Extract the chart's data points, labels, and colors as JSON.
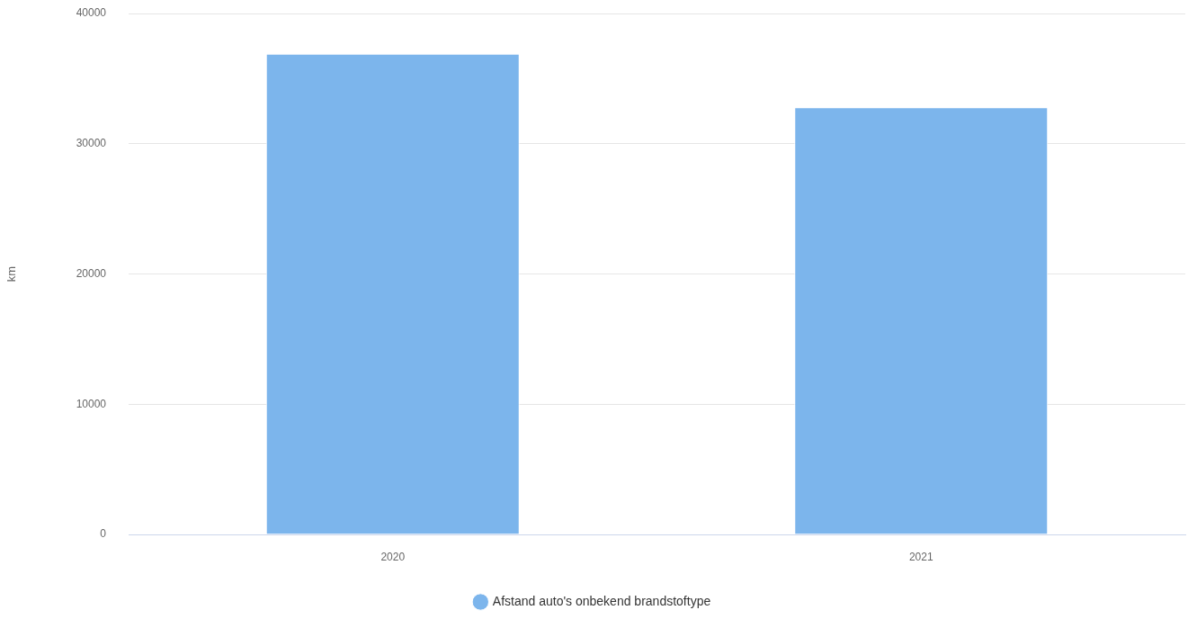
{
  "chart_data": {
    "type": "bar",
    "categories": [
      "2020",
      "2021"
    ],
    "series": [
      {
        "name": "Afstand auto's onbekend brandstoftype",
        "color": "#7cb5ec",
        "values": [
          36900,
          32800
        ]
      }
    ],
    "ylabel": "km",
    "ylim": [
      0,
      40000
    ],
    "yticks": [
      0,
      10000,
      20000,
      30000,
      40000
    ],
    "grid": "y",
    "legend": "bottom"
  }
}
